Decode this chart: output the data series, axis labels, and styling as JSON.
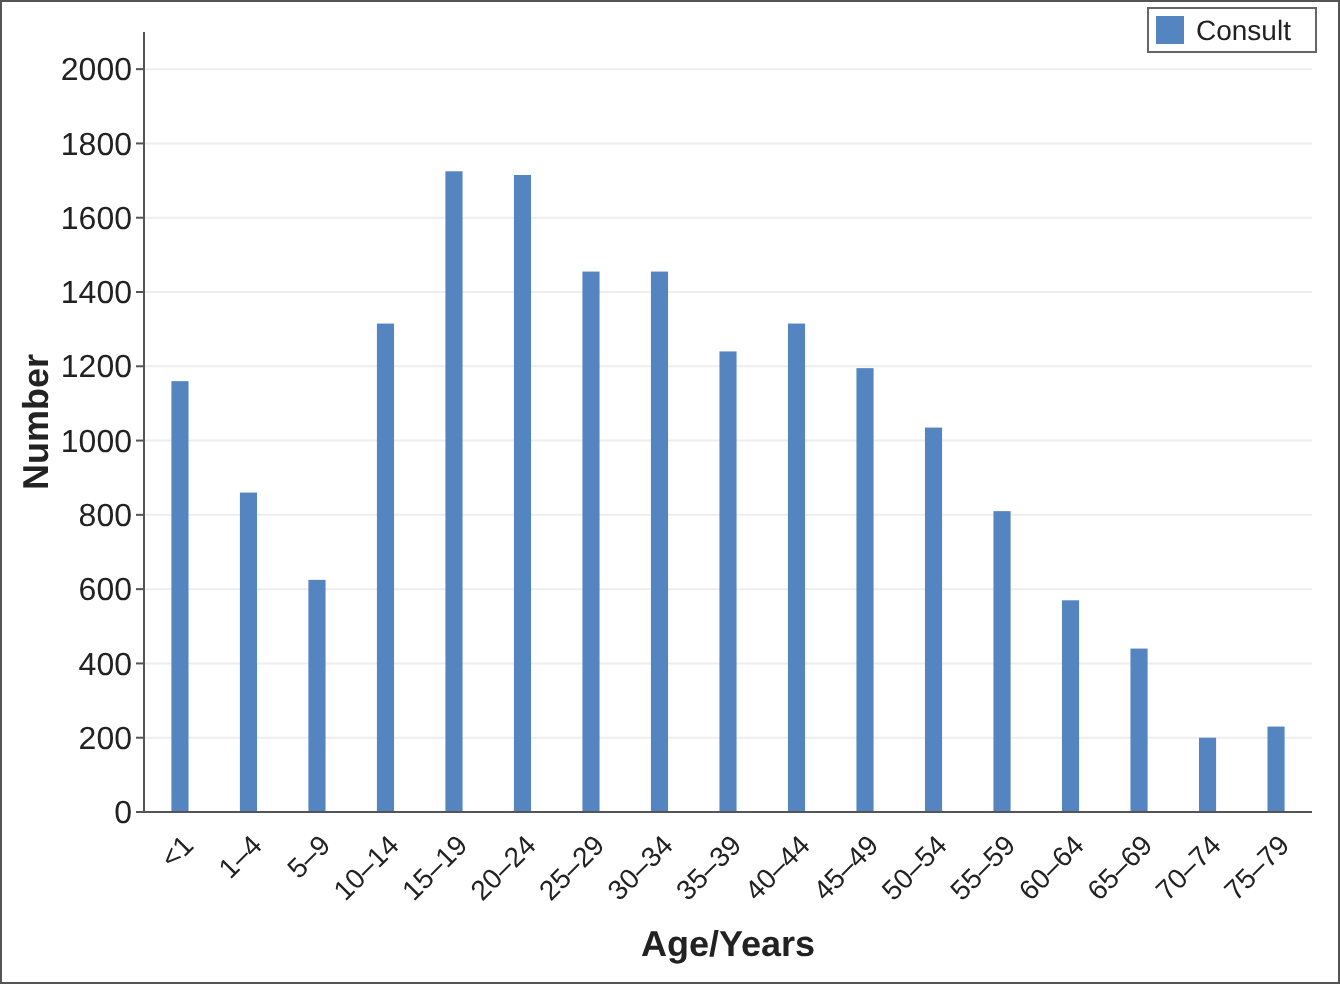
{
  "chart_data": {
    "type": "bar",
    "xlabel": "Age/Years",
    "ylabel": "Number",
    "categories": [
      "<1",
      "1–4",
      "5–9",
      "10–14",
      "15–19",
      "20–24",
      "25–29",
      "30–34",
      "35–39",
      "40–44",
      "45–49",
      "50–54",
      "55–59",
      "60–64",
      "65–69",
      "70–74",
      "75–79"
    ],
    "series": [
      {
        "name": "Consult",
        "color": "#5585c0",
        "values": [
          1160,
          860,
          625,
          1315,
          1725,
          1715,
          1455,
          1455,
          1240,
          1315,
          1195,
          1035,
          810,
          570,
          440,
          200,
          230
        ]
      }
    ],
    "ylim": [
      0,
      2100
    ],
    "yticks": [
      0,
      200,
      400,
      600,
      800,
      1000,
      1200,
      1400,
      1600,
      1800,
      2000
    ],
    "grid": "y",
    "legend": "top right"
  }
}
